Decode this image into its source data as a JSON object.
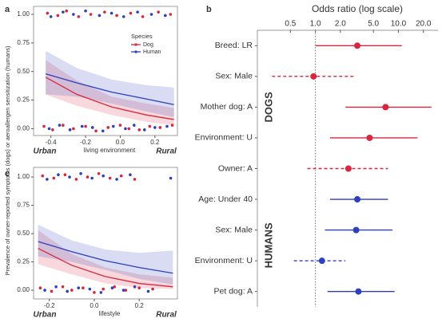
{
  "chart_data": [
    {
      "type": "scatter",
      "label": "a",
      "ylabel": "Prevalence of owner-reported symptoms (dogs) or aeroallergen sensitization (humans)",
      "xlabel": "living environment",
      "left_note": "Urban",
      "right_note": "Rural",
      "xlim": [
        -0.5,
        0.33
      ],
      "xticks": [
        -0.4,
        -0.2,
        {
          "value": 0,
          "label": "0.0"
        },
        0.2
      ],
      "ylim": [
        -0.06,
        1.07
      ],
      "yticks": [
        {
          "value": 0,
          "label": "0.00"
        },
        {
          "value": 0.25,
          "label": "0.25"
        },
        {
          "value": 0.5,
          "label": "0.50"
        },
        {
          "value": 0.75,
          "label": "0.75"
        },
        {
          "value": 1,
          "label": "1.00"
        }
      ],
      "legend_title": "Species",
      "legend": "upper right",
      "fit_x": [
        -0.43,
        -0.25,
        -0.05,
        0.15,
        0.31
      ],
      "series": [
        {
          "name": "Dog",
          "color": "#d7263d",
          "fit": [
            0.45,
            0.3,
            0.19,
            0.12,
            0.08
          ],
          "fit_lower": [
            0.3,
            0.2,
            0.12,
            0.06,
            0.03
          ],
          "fit_upper": [
            0.6,
            0.42,
            0.28,
            0.22,
            0.18
          ],
          "x": [
            -0.42,
            -0.36,
            -0.31,
            -0.24,
            -0.17,
            -0.09,
            -0.02,
            0.06,
            0.13,
            0.22,
            0.29,
            -0.44,
            -0.39,
            -0.33,
            -0.27,
            -0.2,
            -0.14,
            -0.07,
            0.0,
            0.05,
            0.11,
            0.17,
            0.23,
            0.3
          ],
          "y": [
            1.01,
            0.99,
            1.03,
            0.98,
            1.0,
            1.02,
            0.99,
            1.01,
            0.98,
            1.02,
            1.0,
            0.02,
            -0.01,
            0.03,
            0.0,
            0.02,
            -0.02,
            0.01,
            0.03,
            0.0,
            -0.01,
            0.02,
            0.01,
            0.03
          ]
        },
        {
          "name": "Human",
          "color": "#2c3fbf",
          "fit": [
            0.48,
            0.4,
            0.32,
            0.26,
            0.21
          ],
          "fit_lower": [
            0.3,
            0.28,
            0.22,
            0.15,
            0.1
          ],
          "fit_upper": [
            0.68,
            0.53,
            0.43,
            0.38,
            0.36
          ],
          "x": [
            -0.4,
            -0.33,
            -0.27,
            -0.2,
            -0.12,
            -0.05,
            0.02,
            0.1,
            0.18,
            0.26,
            -0.41,
            -0.35,
            -0.29,
            -0.22,
            -0.16,
            -0.1,
            -0.04,
            0.03,
            0.08,
            0.14,
            0.2,
            0.27
          ],
          "y": [
            0.98,
            1.02,
            1.0,
            1.03,
            0.99,
            1.01,
            0.98,
            1.02,
            1.0,
            0.99,
            0.0,
            0.03,
            -0.01,
            0.02,
            0.01,
            -0.02,
            0.02,
            0.0,
            0.03,
            -0.01,
            0.01,
            0.02
          ]
        }
      ]
    },
    {
      "type": "forest",
      "label": "b",
      "title": "Odds ratio (log scale)",
      "log": true,
      "xlim": [
        0.2,
        30
      ],
      "xticks": [
        0.5,
        {
          "value": 1,
          "label": "1.0"
        },
        {
          "value": 2,
          "label": "2.0"
        },
        {
          "value": 5,
          "label": "5.0"
        },
        {
          "value": 10,
          "label": "10.0"
        },
        {
          "value": 20,
          "label": "20.0"
        }
      ],
      "series": [
        {
          "name": "DOGS",
          "color": "#d7263d",
          "categories": [
            "Breed: LR",
            "Sex: Male",
            "Mother dog: A",
            "Environment: U",
            "Owner: A"
          ],
          "values": [
            3.2,
            0.95,
            7,
            4.5,
            2.5
          ],
          "lower": [
            1.0,
            0.3,
            2.3,
            1.5,
            0.8
          ],
          "upper": [
            11,
            3.0,
            25,
            17,
            7.5
          ],
          "significant": [
            true,
            false,
            true,
            true,
            false
          ]
        },
        {
          "name": "HUMANS",
          "color": "#2c3fbf",
          "categories": [
            "Age: Under 40",
            "Sex: Male",
            "Environment: U",
            "Pet dog: A"
          ],
          "values": [
            3.2,
            3.1,
            1.2,
            3.3
          ],
          "lower": [
            1.5,
            1.3,
            0.55,
            1.4
          ],
          "upper": [
            7.5,
            8.5,
            2.3,
            9
          ],
          "significant": [
            true,
            true,
            false,
            true
          ]
        }
      ]
    },
    {
      "type": "scatter",
      "label": "c",
      "xlabel": "lifestyle",
      "left_note": "Urban",
      "right_note": "Rural",
      "xlim": [
        -0.27,
        0.37
      ],
      "xticks": [
        -0.2,
        {
          "value": 0,
          "label": "0.0"
        },
        0.2
      ],
      "ylim": [
        -0.077,
        1.085
      ],
      "yticks": [
        {
          "value": 0,
          "label": "0.00"
        },
        {
          "value": 0.25,
          "label": "0.25"
        },
        {
          "value": 0.5,
          "label": "0.50"
        },
        {
          "value": 0.75,
          "label": "0.75"
        },
        {
          "value": 1,
          "label": "1.00"
        }
      ],
      "fit_x": [
        -0.25,
        -0.1,
        0.05,
        0.2,
        0.35
      ],
      "series": [
        {
          "color": "#d7263d",
          "fit": [
            0.37,
            0.22,
            0.12,
            0.06,
            0.03
          ],
          "fit_lower": [
            0.23,
            0.14,
            0.06,
            0.02,
            0.01
          ],
          "fit_upper": [
            0.53,
            0.32,
            0.2,
            0.14,
            0.11
          ],
          "x": [
            -0.23,
            -0.18,
            -0.13,
            -0.08,
            -0.03,
            0.02,
            0.07,
            0.12,
            0.18,
            -0.24,
            -0.19,
            -0.14,
            -0.1,
            -0.05,
            0.0,
            0.04,
            0.09,
            0.14,
            0.2,
            0.26
          ],
          "y": [
            1.01,
            0.99,
            1.02,
            0.98,
            1.0,
            1.03,
            0.99,
            1.01,
            0.98,
            0.02,
            -0.01,
            0.03,
            0.0,
            0.02,
            -0.02,
            0.01,
            0.03,
            0.0,
            0.02,
            0.01
          ]
        },
        {
          "color": "#2c3fbf",
          "fit": [
            0.43,
            0.34,
            0.26,
            0.2,
            0.15
          ],
          "fit_lower": [
            0.3,
            0.25,
            0.18,
            0.1,
            0.05
          ],
          "fit_upper": [
            0.58,
            0.44,
            0.36,
            0.33,
            0.35
          ],
          "x": [
            -0.21,
            -0.16,
            -0.11,
            -0.06,
            -0.01,
            0.04,
            0.1,
            0.16,
            0.34,
            -0.22,
            -0.17,
            -0.12,
            -0.07,
            -0.02,
            0.03,
            0.08,
            0.13,
            0.18,
            0.24
          ],
          "y": [
            0.98,
            1.02,
            1.0,
            1.03,
            0.99,
            1.01,
            0.98,
            1.02,
            0.99,
            0.0,
            0.03,
            -0.01,
            0.02,
            0.01,
            -0.02,
            0.02,
            0.0,
            0.03,
            -0.01
          ]
        }
      ]
    }
  ]
}
